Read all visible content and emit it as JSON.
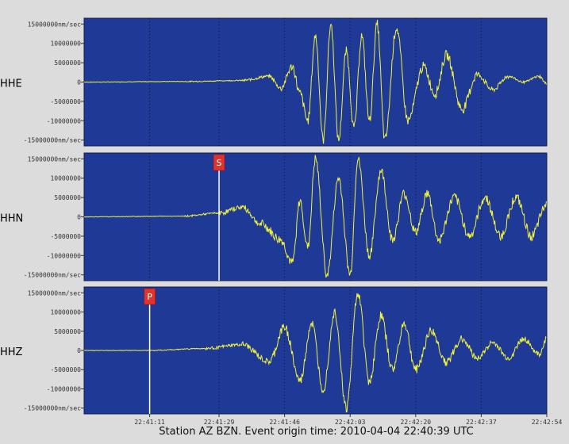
{
  "footer": {
    "caption": "Station AZ BZN.  Event origin time: 2010-04-04 22:40:39 UTC"
  },
  "colors": {
    "page_background": "#dcdcdc",
    "panel_background": "#1f3a96",
    "trace": "#f2f23a",
    "pick_marker": "#e0332b",
    "pick_line": "#ffffff"
  },
  "chart_data": [
    {
      "type": "line",
      "title": "HHE",
      "ylabel": "nm/sec",
      "ylim": [
        -16500000,
        16500000
      ],
      "yticks": [
        {
          "value": 15000000,
          "label": "15000000nm/sec"
        },
        {
          "value": 10000000,
          "label": "10000000"
        },
        {
          "value": 5000000,
          "label": "5000000"
        },
        {
          "value": 0,
          "label": "0"
        },
        {
          "value": -5000000,
          "label": "-5000000"
        },
        {
          "value": -10000000,
          "label": "-10000000"
        },
        {
          "value": -15000000,
          "label": "-15000000nm/sec"
        }
      ],
      "grid": "vertical dotted lines at time ticks",
      "phase_pick": null,
      "series": [
        {
          "values_description_omitted": false,
          "points": [
            [
              "22:40:54",
              0
            ],
            [
              "22:41:20",
              150000
            ],
            [
              "22:41:35",
              400000
            ],
            [
              "22:41:42",
              1500000
            ],
            [
              "22:41:45",
              -1500000
            ],
            [
              "22:41:48",
              4000000
            ],
            [
              "22:41:50",
              -3000000
            ],
            [
              "22:41:52",
              -10000000
            ],
            [
              "22:41:54",
              12000000
            ],
            [
              "22:41:56",
              -15000000
            ],
            [
              "22:41:58",
              15000000
            ],
            [
              "22:42:00",
              -15000000
            ],
            [
              "22:42:02",
              8000000
            ],
            [
              "22:42:04",
              -12000000
            ],
            [
              "22:42:06",
              12000000
            ],
            [
              "22:42:08",
              -10000000
            ],
            [
              "22:42:10",
              15000000
            ],
            [
              "22:42:12",
              -15000000
            ],
            [
              "22:42:15",
              14000000
            ],
            [
              "22:42:18",
              -10000000
            ],
            [
              "22:42:22",
              4000000
            ],
            [
              "22:42:25",
              -3000000
            ],
            [
              "22:42:28",
              7000000
            ],
            [
              "22:42:32",
              -7000000
            ],
            [
              "22:42:36",
              2000000
            ],
            [
              "22:42:40",
              -2000000
            ],
            [
              "22:42:44",
              1500000
            ],
            [
              "22:42:48",
              0
            ],
            [
              "22:42:52",
              1500000
            ],
            [
              "22:42:54",
              -500000
            ]
          ]
        }
      ]
    },
    {
      "type": "line",
      "title": "HHN",
      "ylabel": "nm/sec",
      "ylim": [
        -16500000,
        16500000
      ],
      "yticks": [
        {
          "value": 15000000,
          "label": "15000000nm/sec"
        },
        {
          "value": 10000000,
          "label": "10000000"
        },
        {
          "value": 5000000,
          "label": "5000000"
        },
        {
          "value": 0,
          "label": "0"
        },
        {
          "value": -5000000,
          "label": "-5000000"
        },
        {
          "value": -10000000,
          "label": "-10000000"
        },
        {
          "value": -15000000,
          "label": "-15000000nm/sec"
        }
      ],
      "grid": "vertical dotted lines at time ticks",
      "phase_pick": {
        "label": "S",
        "time": "22:41:29"
      },
      "series": [
        {
          "points": [
            [
              "22:40:54",
              0
            ],
            [
              "22:41:20",
              200000
            ],
            [
              "22:41:29",
              1000000
            ],
            [
              "22:41:35",
              2500000
            ],
            [
              "22:41:40",
              -2000000
            ],
            [
              "22:41:45",
              -6000000
            ],
            [
              "22:41:48",
              -12000000
            ],
            [
              "22:41:50",
              4000000
            ],
            [
              "22:41:52",
              -8000000
            ],
            [
              "22:41:54",
              15000000
            ],
            [
              "22:41:57",
              -15000000
            ],
            [
              "22:42:00",
              10000000
            ],
            [
              "22:42:03",
              -15000000
            ],
            [
              "22:42:05",
              15000000
            ],
            [
              "22:42:08",
              -10000000
            ],
            [
              "22:42:11",
              12000000
            ],
            [
              "22:42:14",
              -6000000
            ],
            [
              "22:42:17",
              6000000
            ],
            [
              "22:42:20",
              -4000000
            ],
            [
              "22:42:23",
              6000000
            ],
            [
              "22:42:26",
              -6000000
            ],
            [
              "22:42:30",
              5000000
            ],
            [
              "22:42:34",
              -5000000
            ],
            [
              "22:42:38",
              5000000
            ],
            [
              "22:42:42",
              -5000000
            ],
            [
              "22:42:46",
              5000000
            ],
            [
              "22:42:50",
              -5000000
            ],
            [
              "22:42:54",
              3000000
            ]
          ]
        }
      ]
    },
    {
      "type": "line",
      "title": "HHZ",
      "ylabel": "nm/sec",
      "ylim": [
        -16500000,
        16500000
      ],
      "yticks": [
        {
          "value": 15000000,
          "label": "15000000nm/sec"
        },
        {
          "value": 10000000,
          "label": "10000000"
        },
        {
          "value": 5000000,
          "label": "5000000"
        },
        {
          "value": 0,
          "label": "0"
        },
        {
          "value": -5000000,
          "label": "-5000000"
        },
        {
          "value": -10000000,
          "label": "-10000000"
        },
        {
          "value": -15000000,
          "label": "-15000000nm/sec"
        }
      ],
      "grid": "vertical dotted lines at time ticks",
      "phase_pick": {
        "label": "P",
        "time": "22:41:11"
      },
      "series": [
        {
          "points": [
            [
              "22:40:54",
              0
            ],
            [
              "22:41:11",
              0
            ],
            [
              "22:41:25",
              500000
            ],
            [
              "22:41:35",
              1500000
            ],
            [
              "22:41:42",
              -3000000
            ],
            [
              "22:41:46",
              6000000
            ],
            [
              "22:41:50",
              -8000000
            ],
            [
              "22:41:53",
              7000000
            ],
            [
              "22:41:56",
              -10000000
            ],
            [
              "22:41:59",
              10000000
            ],
            [
              "22:42:02",
              -15000000
            ],
            [
              "22:42:05",
              15000000
            ],
            [
              "22:42:08",
              -8000000
            ],
            [
              "22:42:11",
              9000000
            ],
            [
              "22:42:14",
              -5000000
            ],
            [
              "22:42:17",
              7000000
            ],
            [
              "22:42:20",
              -5000000
            ],
            [
              "22:42:24",
              5000000
            ],
            [
              "22:42:28",
              -3000000
            ],
            [
              "22:42:32",
              3000000
            ],
            [
              "22:42:36",
              -2000000
            ],
            [
              "22:42:40",
              2000000
            ],
            [
              "22:42:44",
              -2000000
            ],
            [
              "22:42:48",
              3000000
            ],
            [
              "22:42:52",
              -1000000
            ],
            [
              "22:42:54",
              3000000
            ]
          ]
        }
      ]
    }
  ],
  "x_axis": {
    "ticks": [
      "22:41:11",
      "22:41:29",
      "22:41:46",
      "22:42:03",
      "22:42:20",
      "22:42:37",
      "22:42:54"
    ],
    "range": [
      "22:40:54",
      "22:42:54"
    ]
  }
}
